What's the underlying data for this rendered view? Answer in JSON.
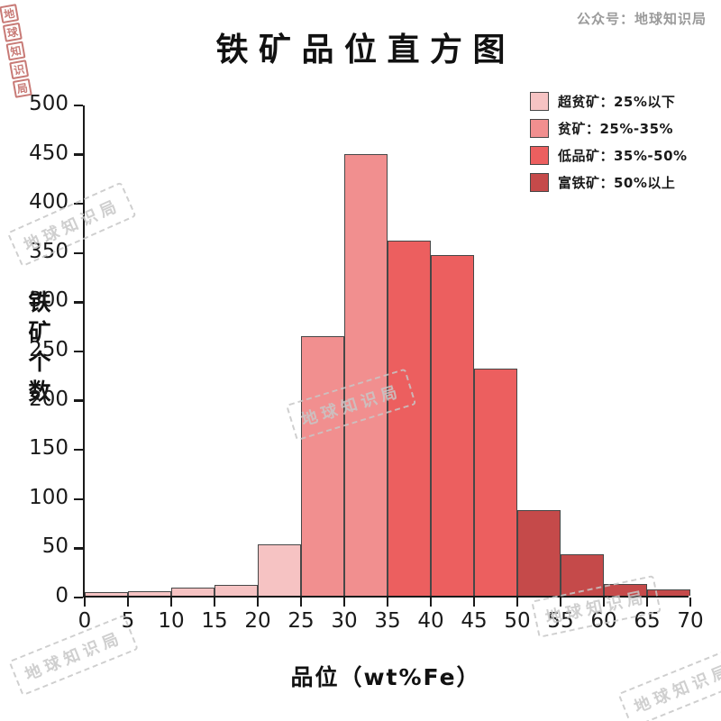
{
  "meta": {
    "account_label": "公众号：地球知识局",
    "watermark_text": "地球知识局",
    "corner_stamp_chars": [
      "地",
      "球",
      "知",
      "识",
      "局"
    ]
  },
  "chart_data": {
    "type": "bar",
    "title": "铁矿品位直方图",
    "xlabel": "品位（wt%Fe）",
    "ylabel": "铁矿个数",
    "xlim": [
      0,
      70
    ],
    "ylim": [
      0,
      500
    ],
    "bin_width": 5,
    "categories": [
      "0-5",
      "5-10",
      "10-15",
      "15-20",
      "20-25",
      "25-30",
      "30-35",
      "35-40",
      "40-45",
      "45-50",
      "50-55",
      "55-60",
      "60-65",
      "65-70"
    ],
    "values": [
      4,
      5,
      8,
      11,
      52,
      264,
      449,
      361,
      346,
      231,
      87,
      42,
      12,
      6
    ],
    "color_index": [
      0,
      0,
      0,
      0,
      0,
      1,
      1,
      2,
      2,
      2,
      3,
      3,
      3,
      3
    ],
    "x_ticks": [
      0,
      5,
      10,
      15,
      20,
      25,
      30,
      35,
      40,
      45,
      50,
      55,
      60,
      65,
      70
    ],
    "y_ticks": [
      0,
      50,
      100,
      150,
      200,
      250,
      300,
      350,
      400,
      450,
      500
    ],
    "bar_border_color": "#474747",
    "legend_position": "upper right",
    "grid": false,
    "legend": [
      {
        "label": "超贫矿：25%以下",
        "color": "#F6C3C3"
      },
      {
        "label": "贫矿：25%-35%",
        "color": "#F18F8F"
      },
      {
        "label": "低品矿：35%-50%",
        "color": "#EC5F5F"
      },
      {
        "label": "富铁矿：50%以上",
        "color": "#C54A4A"
      }
    ]
  }
}
